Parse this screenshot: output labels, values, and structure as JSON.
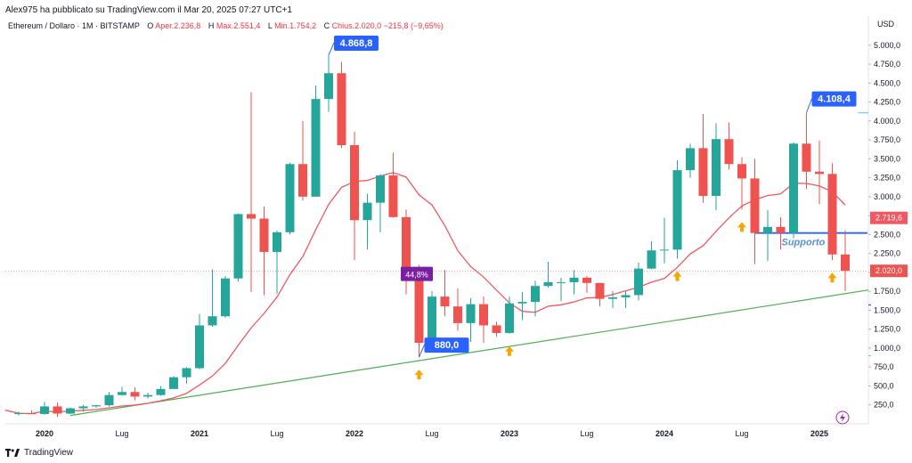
{
  "header": {
    "publisher_line": "Alex975 ha pubblicato su TradingView.com il Mar 20, 2025 07:27 UTC+1"
  },
  "legend": {
    "symbol": "Ethereum / Dollaro · 1M · BITSTAMP",
    "open_label": "O",
    "open_value": "Aper.2.236,8",
    "high_label": "H",
    "high_value": "Max.2.551,4",
    "low_label": "L",
    "low_value": "Min.1.754,2",
    "close_label": "C",
    "close_value": "Chius.2.020,0",
    "change_value": "−215,8 (−9,65%)"
  },
  "footer": {
    "brand": "TradingView"
  },
  "colors": {
    "up": "#26a69a",
    "down": "#ef5350",
    "ma": "#f05961",
    "trendline": "#4caf50",
    "support": "#2962ff",
    "callout": "#2962ff",
    "percent_badge": "#7b1fa2",
    "arrow": "#f7a600"
  },
  "chart_data": {
    "type": "candlestick",
    "currency": "USD",
    "ylim": [
      0,
      5150
    ],
    "y_ticks": [
      "250,0",
      "500,0",
      "750,0",
      "1.000,0",
      "1.250,0",
      "1.500,0",
      "1.750,0",
      "2.000,0",
      "2.250,0",
      "2.500,0",
      "2.750,0",
      "3.000,0",
      "3.250,0",
      "3.500,0",
      "3.750,0",
      "4.000,0",
      "4.250,0",
      "4.500,0",
      "4.750,0",
      "5.000,0"
    ],
    "x_labels": [
      {
        "label": "2020",
        "index": 2
      },
      {
        "label": "Lug",
        "index": 8
      },
      {
        "label": "2021",
        "index": 14
      },
      {
        "label": "Lug",
        "index": 20
      },
      {
        "label": "2022",
        "index": 26
      },
      {
        "label": "Lug",
        "index": 32
      },
      {
        "label": "2023",
        "index": 38
      },
      {
        "label": "Lug",
        "index": 44
      },
      {
        "label": "2024",
        "index": 50
      },
      {
        "label": "Lug",
        "index": 56
      },
      {
        "label": "2025",
        "index": 62
      }
    ],
    "candles": [
      {
        "o": 130,
        "h": 160,
        "l": 110,
        "c": 140
      },
      {
        "o": 140,
        "h": 180,
        "l": 130,
        "c": 130
      },
      {
        "o": 130,
        "h": 290,
        "l": 120,
        "c": 230
      },
      {
        "o": 230,
        "h": 280,
        "l": 90,
        "c": 135
      },
      {
        "o": 135,
        "h": 215,
        "l": 130,
        "c": 205
      },
      {
        "o": 205,
        "h": 250,
        "l": 160,
        "c": 230
      },
      {
        "o": 230,
        "h": 250,
        "l": 215,
        "c": 245
      },
      {
        "o": 245,
        "h": 420,
        "l": 225,
        "c": 380
      },
      {
        "o": 380,
        "h": 490,
        "l": 370,
        "c": 420
      },
      {
        "o": 420,
        "h": 480,
        "l": 310,
        "c": 360
      },
      {
        "o": 360,
        "h": 410,
        "l": 335,
        "c": 380
      },
      {
        "o": 380,
        "h": 500,
        "l": 370,
        "c": 460
      },
      {
        "o": 460,
        "h": 630,
        "l": 470,
        "c": 615
      },
      {
        "o": 615,
        "h": 750,
        "l": 530,
        "c": 735
      },
      {
        "o": 735,
        "h": 1450,
        "l": 720,
        "c": 1300
      },
      {
        "o": 1300,
        "h": 2040,
        "l": 1280,
        "c": 1420
      },
      {
        "o": 1420,
        "h": 1950,
        "l": 1400,
        "c": 1920
      },
      {
        "o": 1920,
        "h": 2780,
        "l": 1880,
        "c": 2770
      },
      {
        "o": 2770,
        "h": 4380,
        "l": 1740,
        "c": 2710
      },
      {
        "o": 2710,
        "h": 2870,
        "l": 1700,
        "c": 2270
      },
      {
        "o": 2270,
        "h": 2550,
        "l": 1720,
        "c": 2530
      },
      {
        "o": 2530,
        "h": 3450,
        "l": 2500,
        "c": 3430
      },
      {
        "o": 3430,
        "h": 4000,
        "l": 2950,
        "c": 3000
      },
      {
        "o": 3000,
        "h": 4470,
        "l": 3000,
        "c": 4290
      },
      {
        "o": 4290,
        "h": 4868,
        "l": 4120,
        "c": 4630
      },
      {
        "o": 4630,
        "h": 4780,
        "l": 3640,
        "c": 3680
      },
      {
        "o": 3680,
        "h": 3860,
        "l": 2160,
        "c": 2690
      },
      {
        "o": 2690,
        "h": 3040,
        "l": 2300,
        "c": 2920
      },
      {
        "o": 2920,
        "h": 3300,
        "l": 2530,
        "c": 3280
      },
      {
        "o": 3280,
        "h": 3580,
        "l": 2720,
        "c": 2730
      },
      {
        "o": 2730,
        "h": 2830,
        "l": 1710,
        "c": 1940
      },
      {
        "o": 1940,
        "h": 2100,
        "l": 880,
        "c": 1070
      },
      {
        "o": 1070,
        "h": 1750,
        "l": 1000,
        "c": 1680
      },
      {
        "o": 1680,
        "h": 2030,
        "l": 1420,
        "c": 1550
      },
      {
        "o": 1550,
        "h": 1790,
        "l": 1230,
        "c": 1330
      },
      {
        "o": 1330,
        "h": 1660,
        "l": 1080,
        "c": 1580
      },
      {
        "o": 1580,
        "h": 1680,
        "l": 1070,
        "c": 1300
      },
      {
        "o": 1300,
        "h": 1350,
        "l": 1150,
        "c": 1200
      },
      {
        "o": 1200,
        "h": 1680,
        "l": 1190,
        "c": 1590
      },
      {
        "o": 1590,
        "h": 1740,
        "l": 1370,
        "c": 1610
      },
      {
        "o": 1610,
        "h": 1890,
        "l": 1420,
        "c": 1820
      },
      {
        "o": 1820,
        "h": 2140,
        "l": 1800,
        "c": 1870
      },
      {
        "o": 1870,
        "h": 1930,
        "l": 1620,
        "c": 1870
      },
      {
        "o": 1870,
        "h": 2030,
        "l": 1710,
        "c": 1930
      },
      {
        "o": 1930,
        "h": 1950,
        "l": 1730,
        "c": 1860
      },
      {
        "o": 1860,
        "h": 1860,
        "l": 1550,
        "c": 1650
      },
      {
        "o": 1650,
        "h": 1750,
        "l": 1530,
        "c": 1670
      },
      {
        "o": 1670,
        "h": 1750,
        "l": 1530,
        "c": 1700
      },
      {
        "o": 1700,
        "h": 2130,
        "l": 1630,
        "c": 2050
      },
      {
        "o": 2050,
        "h": 2410,
        "l": 2040,
        "c": 2290
      },
      {
        "o": 2290,
        "h": 2720,
        "l": 2120,
        "c": 2300
      },
      {
        "o": 2300,
        "h": 3480,
        "l": 2180,
        "c": 3350
      },
      {
        "o": 3350,
        "h": 3700,
        "l": 3250,
        "c": 3640
      },
      {
        "o": 3640,
        "h": 4090,
        "l": 2920,
        "c": 3010
      },
      {
        "o": 3010,
        "h": 3970,
        "l": 2820,
        "c": 3760
      },
      {
        "o": 3760,
        "h": 3980,
        "l": 3360,
        "c": 3430
      },
      {
        "o": 3430,
        "h": 3520,
        "l": 2830,
        "c": 3240
      },
      {
        "o": 3240,
        "h": 3500,
        "l": 2110,
        "c": 2520
      },
      {
        "o": 2520,
        "h": 2820,
        "l": 2150,
        "c": 2600
      },
      {
        "o": 2600,
        "h": 2730,
        "l": 2300,
        "c": 2520
      },
      {
        "o": 2520,
        "h": 3720,
        "l": 2450,
        "c": 3700
      },
      {
        "o": 3700,
        "h": 4108,
        "l": 3100,
        "c": 3330
      },
      {
        "o": 3330,
        "h": 3740,
        "l": 2900,
        "c": 3300
      },
      {
        "o": 3300,
        "h": 3440,
        "l": 2160,
        "c": 2237
      },
      {
        "o": 2237,
        "h": 2551,
        "l": 1754,
        "c": 2020
      }
    ],
    "moving_average": {
      "type": "sma",
      "last_value": "2.719,6"
    },
    "price_labels": {
      "ma_last": "2.719,6",
      "last_close": "2.020,0",
      "high_callout": "4.868,8",
      "low_callout": "880,0",
      "recent_high_callout": "4.108,4",
      "percent_badge": "44,8%"
    },
    "support_level": {
      "value": 2520,
      "label": "Supporto",
      "from_index": 57,
      "to_index": 66
    },
    "trendline": {
      "from_index": 4,
      "from_value": 110,
      "to_index": 70,
      "to_value": 1880
    },
    "ref_lines": [
      {
        "value": 4108,
        "color": "#73d4f0",
        "from_index": 65
      },
      {
        "value": 1570,
        "color": "#2962ff",
        "from_index": 66
      },
      {
        "value": 900,
        "color": "#73d4f0",
        "from_index": 66
      }
    ],
    "arrows_up": [
      31,
      38,
      51,
      56,
      63
    ]
  }
}
